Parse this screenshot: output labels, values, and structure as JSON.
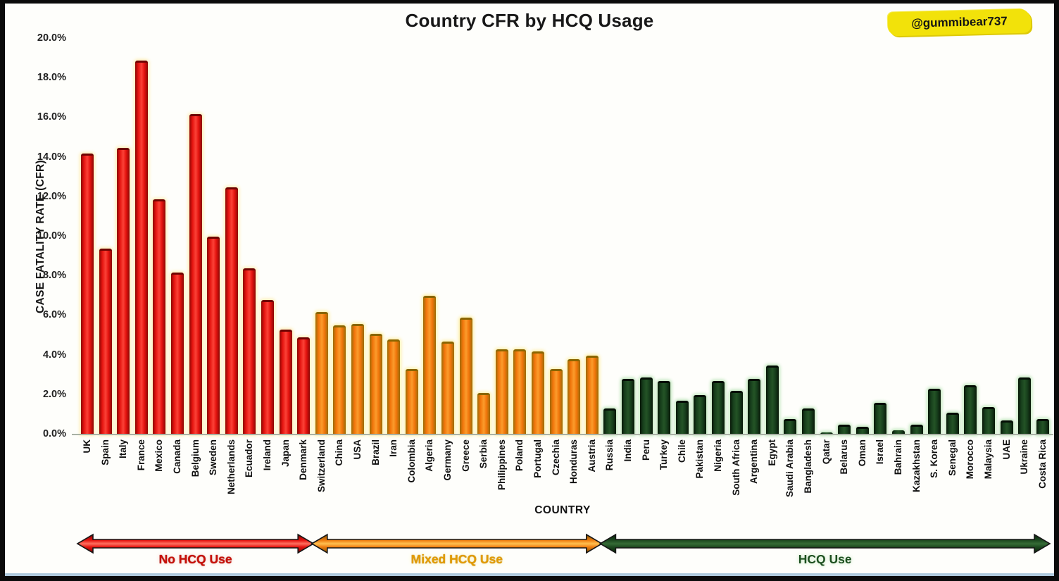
{
  "frame": {
    "watermark": "@gummibear737"
  },
  "chart_data": {
    "type": "bar",
    "title": "Country CFR by HCQ Usage",
    "xlabel": "COUNTRY",
    "ylabel": "CASE FATALITY RATE (CFR)",
    "ylim": [
      0,
      20
    ],
    "ytick_step": 2,
    "yticks": [
      "0.0%",
      "2.0%",
      "4.0%",
      "6.0%",
      "8.0%",
      "10.0%",
      "12.0%",
      "14.0%",
      "16.0%",
      "18.0%",
      "20.0%"
    ],
    "grid": false,
    "legend_position": "bottom-arrows",
    "groups": [
      {
        "name": "no-hcq-use",
        "label": "No HCQ Use",
        "bar_color": "#e51410",
        "edge_color": "#8c0603",
        "highlight_color": "#fb4237",
        "cap_color": "#6f0301",
        "glow_color": "rgba(255,236,170,0.85)",
        "label_color": "#c81008",
        "label_glow": "0 0 1px #7a0000, 0 0 6px #ffcdc5",
        "arrow_stops": [
          "#7c0402",
          "#e51410",
          "#ff7060"
        ],
        "categories": [
          "UK",
          "Spain",
          "Italy",
          "France",
          "Mexico",
          "Canada",
          "Belgium",
          "Sweden",
          "Netherlands",
          "Ecuador",
          "Ireland",
          "Japan",
          "Denmark"
        ],
        "values": [
          14.2,
          9.4,
          14.5,
          18.9,
          11.9,
          8.2,
          16.2,
          10.0,
          12.5,
          8.4,
          6.8,
          5.3,
          4.9
        ]
      },
      {
        "name": "mixed-hcq-use",
        "label": "Mixed HCQ Use",
        "bar_color": "#f1750b",
        "edge_color": "#9c6b06",
        "highlight_color": "#fb9c2c",
        "cap_color": "#8a6500",
        "glow_color": "rgba(255,238,160,0.85)",
        "label_color": "#e39c00",
        "label_glow": "0 0 1px #9a6000, 0 0 6px #fff2b0",
        "arrow_stops": [
          "#7a5202",
          "#ef7d10",
          "#ffc050"
        ],
        "categories": [
          "Switzerland",
          "China",
          "USA",
          "Brazil",
          "Iran",
          "Colombia",
          "Algeria",
          "Germany",
          "Greece",
          "Serbia",
          "Philippines",
          "Poland",
          "Portugal",
          "Czechia",
          "Honduras",
          "Austria"
        ],
        "values": [
          6.2,
          5.5,
          5.6,
          5.1,
          4.8,
          3.3,
          7.0,
          4.7,
          5.9,
          2.1,
          4.3,
          4.3,
          4.2,
          3.3,
          3.8,
          4.0
        ]
      },
      {
        "name": "hcq-use",
        "label": "HCQ Use",
        "bar_color": "#173f1c",
        "edge_color": "#081808",
        "highlight_color": "#245426",
        "cap_color": "#030d04",
        "glow_color": "rgba(185,228,182,0.9)",
        "label_color": "#1c4f1f",
        "label_glow": "0 0 6px #bfe5bb",
        "arrow_stops": [
          "#0a2008",
          "#1d4a20",
          "#356b36"
        ],
        "categories": [
          "Russia",
          "India",
          "Peru",
          "Turkey",
          "Chile",
          "Pakistan",
          "Nigeria",
          "South Africa",
          "Argentina",
          "Egypt",
          "Saudi Arabia",
          "Bangladesh",
          "Qatar",
          "Belarus",
          "Oman",
          "Israel",
          "Bahrain",
          "Kazakhstan",
          "S. Korea",
          "Senegal",
          "Morocco",
          "Malaysia",
          "UAE",
          "Ukraine",
          "Costa Rica"
        ],
        "values": [
          1.3,
          2.8,
          2.9,
          2.7,
          1.7,
          2.0,
          2.7,
          2.2,
          2.8,
          3.5,
          0.8,
          1.3,
          0.1,
          0.5,
          0.4,
          1.6,
          0.2,
          0.5,
          2.3,
          1.1,
          2.5,
          1.4,
          0.7,
          2.9,
          0.8
        ]
      }
    ]
  }
}
